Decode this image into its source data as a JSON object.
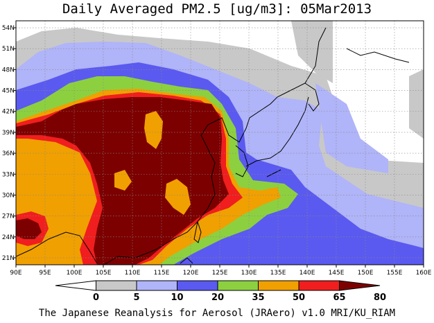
{
  "title": "Daily Averaged PM2.5 [ug/m3]: 05Mar2013",
  "credit": "The Japanese Reanalysis for Aerosol (JRAero) v1.0 MRI/KU_RIAM",
  "map": {
    "lon_range": [
      90,
      160
    ],
    "lat_range": [
      20,
      55
    ],
    "lon_ticks": [
      "90E",
      "95E",
      "100E",
      "105E",
      "110E",
      "115E",
      "120E",
      "125E",
      "130E",
      "135E",
      "140E",
      "145E",
      "150E",
      "155E",
      "160E"
    ],
    "lat_ticks": [
      "21N",
      "24N",
      "27N",
      "30N",
      "33N",
      "36N",
      "39N",
      "42N",
      "45N",
      "48N",
      "51N",
      "54N"
    ],
    "grid": true,
    "colors": {
      "lt5": "#ffffff",
      "5_10": "#c8c8c8",
      "10_20": "#b0b4f8",
      "20_35": "#5a5af0",
      "35_50": "#8cd040",
      "50_65": "#f0a000",
      "65_80": "#f01e1e",
      "gt80": "#7d0000"
    }
  },
  "colorbar": {
    "labels": [
      "0",
      "5",
      "10",
      "20",
      "35",
      "50",
      "65",
      "80"
    ],
    "colors": [
      "#ffffff",
      "#c8c8c8",
      "#b0b4f8",
      "#5a5af0",
      "#8cd040",
      "#f0a000",
      "#f01e1e",
      "#7d0000"
    ]
  }
}
